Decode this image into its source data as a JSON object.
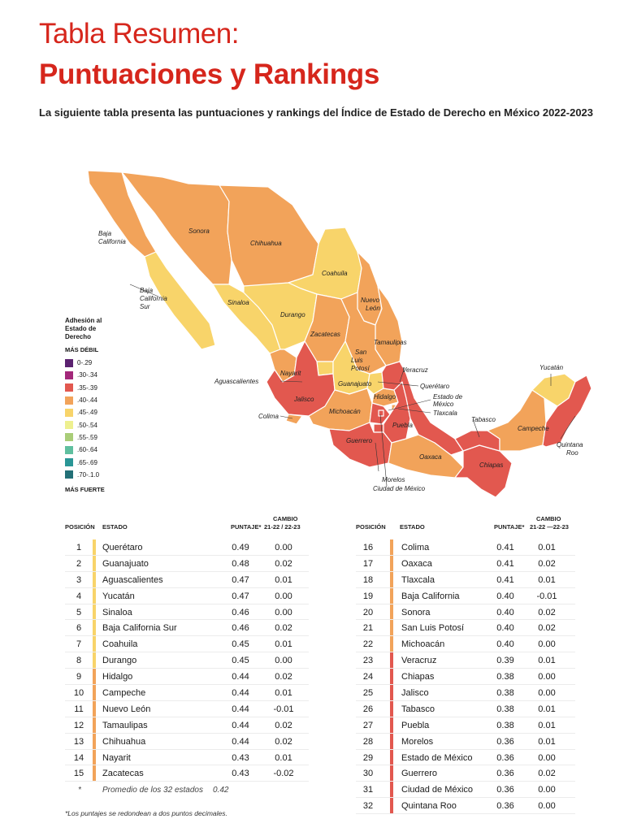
{
  "header": {
    "title_line1": "Tabla Resumen:",
    "title_line2": "Puntuaciones y Rankings",
    "subtitle": "La siguiente tabla presenta las puntuaciones y rankings del Índice de Estado de Derecho en México 2022-2023"
  },
  "legend": {
    "title": "Adhesión al Estado de Derecho",
    "top_label": "MÁS DÉBIL",
    "bottom_label": "MÁS FUERTE",
    "items": [
      {
        "label": "0-.29",
        "color": "#5b2270"
      },
      {
        "label": ".30-.34",
        "color": "#a3287a"
      },
      {
        "label": ".35-.39",
        "color": "#e2584f"
      },
      {
        "label": ".40-.44",
        "color": "#f2a35a"
      },
      {
        "label": ".45-.49",
        "color": "#f8d46a"
      },
      {
        "label": ".50-.54",
        "color": "#eef08f"
      },
      {
        "label": ".55-.59",
        "color": "#a9cd78"
      },
      {
        "label": ".60-.64",
        "color": "#5fbf9f"
      },
      {
        "label": ".65-.69",
        "color": "#2a9696"
      },
      {
        "label": ".70-.1.0",
        "color": "#237077"
      }
    ]
  },
  "map_labels": [
    "Baja California",
    "Sonora",
    "Chihuahua",
    "Coahuila",
    "Baja California Sur",
    "Sinaloa",
    "Durango",
    "Nuevo León",
    "Zacatecas",
    "Tamaulipas",
    "San Luis Potosí",
    "Nayarit",
    "Aguascalientes",
    "Guanajuato",
    "Veracruz",
    "Querétaro",
    "Estado de México",
    "Tlaxcala",
    "Hidalgo",
    "Jalisco",
    "Colima",
    "Michoacán",
    "Puebla",
    "Guerrero",
    "Oaxaca",
    "Morelos",
    "Ciudad de México",
    "Tabasco",
    "Campeche",
    "Chiapas",
    "Yucatán",
    "Quintana Roo"
  ],
  "table": {
    "headers": {
      "pos": "POSICIÓN",
      "state": "ESTADO",
      "score": "PUNTAJE*",
      "change_top": "CAMBIO",
      "change_left_bottom": "21-22 / 22-23",
      "change_right_bottom": "21-22 —22-23"
    },
    "left_rows": [
      {
        "pos": "1",
        "state": "Querétaro",
        "score": "0.49",
        "change": "0.00",
        "color": "#f8d46a"
      },
      {
        "pos": "2",
        "state": "Guanajuato",
        "score": "0.48",
        "change": "0.02",
        "color": "#f8d46a"
      },
      {
        "pos": "3",
        "state": "Aguascalientes",
        "score": "0.47",
        "change": "0.01",
        "color": "#f8d46a"
      },
      {
        "pos": "4",
        "state": "Yucatán",
        "score": "0.47",
        "change": "0.00",
        "color": "#f8d46a"
      },
      {
        "pos": "5",
        "state": "Sinaloa",
        "score": "0.46",
        "change": "0.00",
        "color": "#f8d46a"
      },
      {
        "pos": "6",
        "state": "Baja California Sur",
        "score": "0.46",
        "change": "0.02",
        "color": "#f8d46a"
      },
      {
        "pos": "7",
        "state": "Coahuila",
        "score": "0.45",
        "change": "0.01",
        "color": "#f8d46a"
      },
      {
        "pos": "8",
        "state": "Durango",
        "score": "0.45",
        "change": "0.00",
        "color": "#f8d46a"
      },
      {
        "pos": "9",
        "state": "Hidalgo",
        "score": "0.44",
        "change": "0.02",
        "color": "#f2a35a"
      },
      {
        "pos": "10",
        "state": "Campeche",
        "score": "0.44",
        "change": "0.01",
        "color": "#f2a35a"
      },
      {
        "pos": "11",
        "state": "Nuevo León",
        "score": "0.44",
        "change": "-0.01",
        "color": "#f2a35a"
      },
      {
        "pos": "12",
        "state": "Tamaulipas",
        "score": "0.44",
        "change": "0.02",
        "color": "#f2a35a"
      },
      {
        "pos": "13",
        "state": "Chihuahua",
        "score": "0.44",
        "change": "0.02",
        "color": "#f2a35a"
      },
      {
        "pos": "14",
        "state": "Nayarit",
        "score": "0.43",
        "change": "0.01",
        "color": "#f2a35a"
      },
      {
        "pos": "15",
        "state": "Zacatecas",
        "score": "0.43",
        "change": "-0.02",
        "color": "#f2a35a"
      }
    ],
    "average": {
      "marker": "*",
      "label": "Promedio de los 32 estados",
      "value": "0.42"
    },
    "right_rows": [
      {
        "pos": "16",
        "state": "Colima",
        "score": "0.41",
        "change": "0.01",
        "color": "#f2a35a"
      },
      {
        "pos": "17",
        "state": "Oaxaca",
        "score": "0.41",
        "change": "0.02",
        "color": "#f2a35a"
      },
      {
        "pos": "18",
        "state": "Tlaxcala",
        "score": "0.41",
        "change": "0.01",
        "color": "#f2a35a"
      },
      {
        "pos": "19",
        "state": "Baja California",
        "score": "0.40",
        "change": "-0.01",
        "color": "#f2a35a"
      },
      {
        "pos": "20",
        "state": "Sonora",
        "score": "0.40",
        "change": "0.02",
        "color": "#f2a35a"
      },
      {
        "pos": "21",
        "state": "San Luis Potosí",
        "score": "0.40",
        "change": "0.02",
        "color": "#f2a35a"
      },
      {
        "pos": "22",
        "state": "Michoacán",
        "score": "0.40",
        "change": "0.00",
        "color": "#f2a35a"
      },
      {
        "pos": "23",
        "state": "Veracruz",
        "score": "0.39",
        "change": "0.01",
        "color": "#e2584f"
      },
      {
        "pos": "24",
        "state": "Chiapas",
        "score": "0.38",
        "change": "0.00",
        "color": "#e2584f"
      },
      {
        "pos": "25",
        "state": "Jalisco",
        "score": "0.38",
        "change": "0.00",
        "color": "#e2584f"
      },
      {
        "pos": "26",
        "state": "Tabasco",
        "score": "0.38",
        "change": "0.01",
        "color": "#e2584f"
      },
      {
        "pos": "27",
        "state": "Puebla",
        "score": "0.38",
        "change": "0.01",
        "color": "#e2584f"
      },
      {
        "pos": "28",
        "state": "Morelos",
        "score": "0.36",
        "change": "0.01",
        "color": "#e2584f"
      },
      {
        "pos": "29",
        "state": "Estado de México",
        "score": "0.36",
        "change": "0.00",
        "color": "#e2584f"
      },
      {
        "pos": "30",
        "state": "Guerrero",
        "score": "0.36",
        "change": "0.02",
        "color": "#e2584f"
      },
      {
        "pos": "31",
        "state": "Ciudad de México",
        "score": "0.36",
        "change": "0.00",
        "color": "#e2584f"
      },
      {
        "pos": "32",
        "state": "Quintana Roo",
        "score": "0.36",
        "change": "0.00",
        "color": "#e2584f"
      }
    ]
  },
  "footnote": "*Los puntajes se redondean a dos puntos decimales."
}
